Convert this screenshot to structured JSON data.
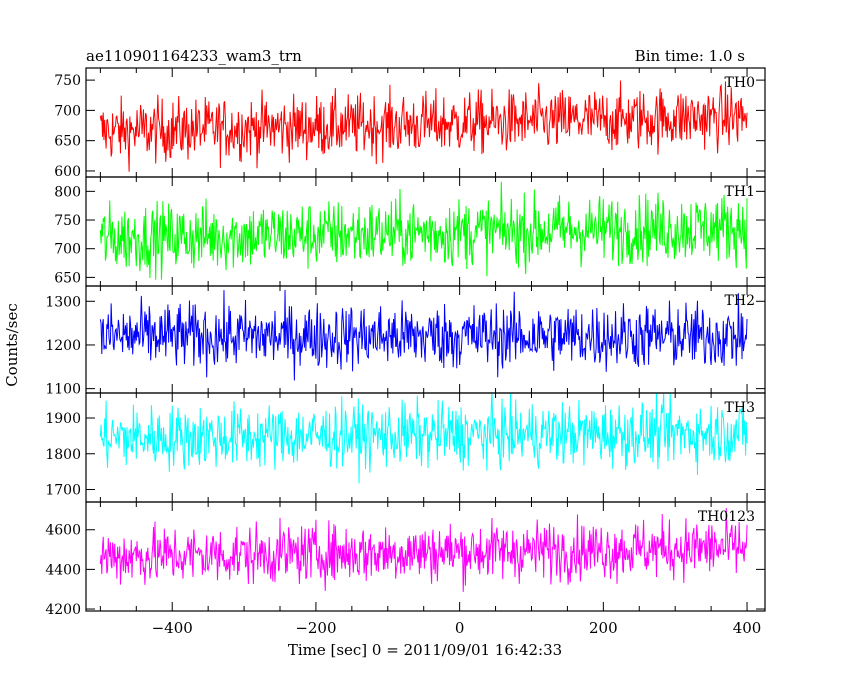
{
  "header": {
    "title": "ae110901164233_wam3_trn",
    "bin_time": "Bin time: 1.0 s"
  },
  "axes": {
    "xlabel": "Time [sec] 0 = 2011/09/01 16:42:33",
    "ylabel": "Counts/sec"
  },
  "chart_data": {
    "type": "line",
    "x_range": [
      -500,
      400
    ],
    "xlim": [
      -520,
      425
    ],
    "x_ticks": [
      -400,
      -200,
      0,
      200,
      400
    ],
    "x_tick_labels": [
      "−400",
      "−200",
      "0",
      "200",
      "400"
    ],
    "bin_time_s": 1.0,
    "grid": false,
    "series": [
      {
        "name": "TH0",
        "color": "#ff0000",
        "ylim": [
          590,
          770
        ],
        "y_ticks": [
          600,
          650,
          700,
          750
        ],
        "y_tick_labels": [
          "600",
          "650",
          "700",
          "750"
        ],
        "mean": 665,
        "noise": 26,
        "trend": 25
      },
      {
        "name": "TH1",
        "color": "#00ff00",
        "ylim": [
          635,
          825
        ],
        "y_ticks": [
          650,
          700,
          750,
          800
        ],
        "y_tick_labels": [
          "650",
          "700",
          "750",
          "800"
        ],
        "mean": 718,
        "noise": 30,
        "trend": 20
      },
      {
        "name": "TH2",
        "color": "#0000ff",
        "ylim": [
          1090,
          1335
        ],
        "y_ticks": [
          1100,
          1200,
          1300
        ],
        "y_tick_labels": [
          "1100",
          "1200",
          "1300"
        ],
        "mean": 1220,
        "noise": 38,
        "trend": 0
      },
      {
        "name": "TH3",
        "color": "#00ffff",
        "ylim": [
          1665,
          1970
        ],
        "y_ticks": [
          1700,
          1800,
          1900
        ],
        "y_tick_labels": [
          "1700",
          "1800",
          "1900"
        ],
        "mean": 1845,
        "noise": 45,
        "trend": 15
      },
      {
        "name": "TH0123",
        "color": "#ff00ff",
        "ylim": [
          4190,
          4740
        ],
        "y_ticks": [
          4200,
          4400,
          4600
        ],
        "y_tick_labels": [
          "4200",
          "4400",
          "4600"
        ],
        "mean": 4465,
        "noise": 75,
        "trend": 45
      }
    ]
  }
}
